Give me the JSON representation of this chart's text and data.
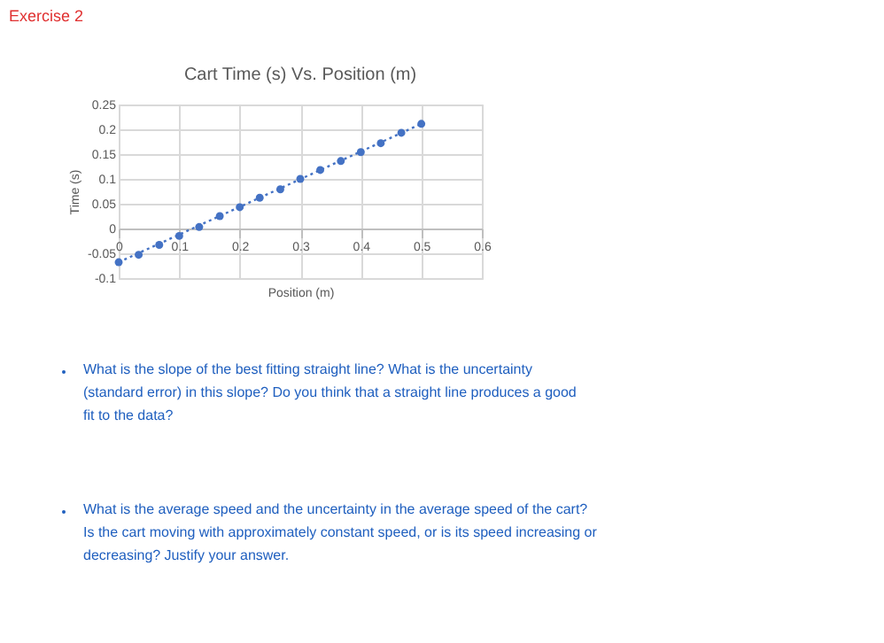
{
  "chart_data": {
    "type": "scatter",
    "title": "Cart Time (s) Vs. Position (m)",
    "xlabel": "Position (m)",
    "ylabel": "Time (s)",
    "x": [
      0,
      0.033,
      0.067,
      0.1,
      0.133,
      0.167,
      0.2,
      0.233,
      0.267,
      0.3,
      0.333,
      0.367,
      0.4,
      0.433,
      0.467,
      0.5
    ],
    "series": [
      {
        "color": "#4472c4",
        "values": [
          -0.068,
          -0.053,
          -0.033,
          -0.015,
          0.003,
          0.025,
          0.043,
          0.062,
          0.079,
          0.1,
          0.118,
          0.136,
          0.154,
          0.172,
          0.193,
          0.211
        ]
      },
      {
        "type": "line",
        "color": "#4472c4",
        "line_style": "dotted",
        "marker": "none",
        "x": [
          0,
          0.5
        ],
        "values": [
          -0.068,
          0.211
        ]
      }
    ],
    "xlim": [
      0,
      0.6
    ],
    "xticks": [
      0,
      0.1,
      0.2,
      0.3,
      0.4,
      0.5,
      0.6
    ],
    "ylim": [
      -0.1,
      0.25
    ],
    "yticks": [
      -0.1,
      -0.05,
      0,
      0.05,
      0.1,
      0.15,
      0.2,
      0.25
    ],
    "grid": true,
    "marker": "circle",
    "annotations": [
      "Exercise 2",
      "What is the slope of the best fitting straight line?  What is the uncertainty (standard error) in this slope?  Do you think that a straight line produces a good fit to the data?",
      "What is the average speed and the uncertainty in the average speed of the cart?\nIs the cart moving with approximately constant speed, or is its speed increasing or decreasing?  Justify your answer."
    ]
  }
}
